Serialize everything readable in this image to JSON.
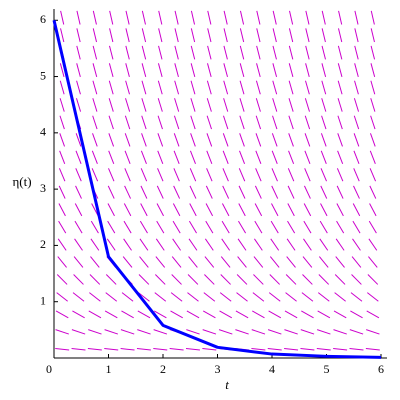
{
  "chart_data": {
    "type": "line",
    "xlabel": "t",
    "ylabel": "η(t)",
    "x": [
      0,
      1,
      2,
      3,
      4,
      5,
      6
    ],
    "values": [
      6,
      1.8,
      0.58,
      0.19,
      0.07,
      0.03,
      0.01
    ],
    "color": "#0000ff",
    "xlim": [
      0,
      6
    ],
    "ylim": [
      0,
      6.2
    ],
    "xticks": [
      0,
      1,
      2,
      3,
      4,
      5,
      6
    ],
    "yticks": [
      1,
      2,
      3,
      4,
      5,
      6
    ],
    "field": {
      "color": "#cc00cc",
      "slope_per_eta": -0.7,
      "columns": 20,
      "rows": 20
    }
  }
}
